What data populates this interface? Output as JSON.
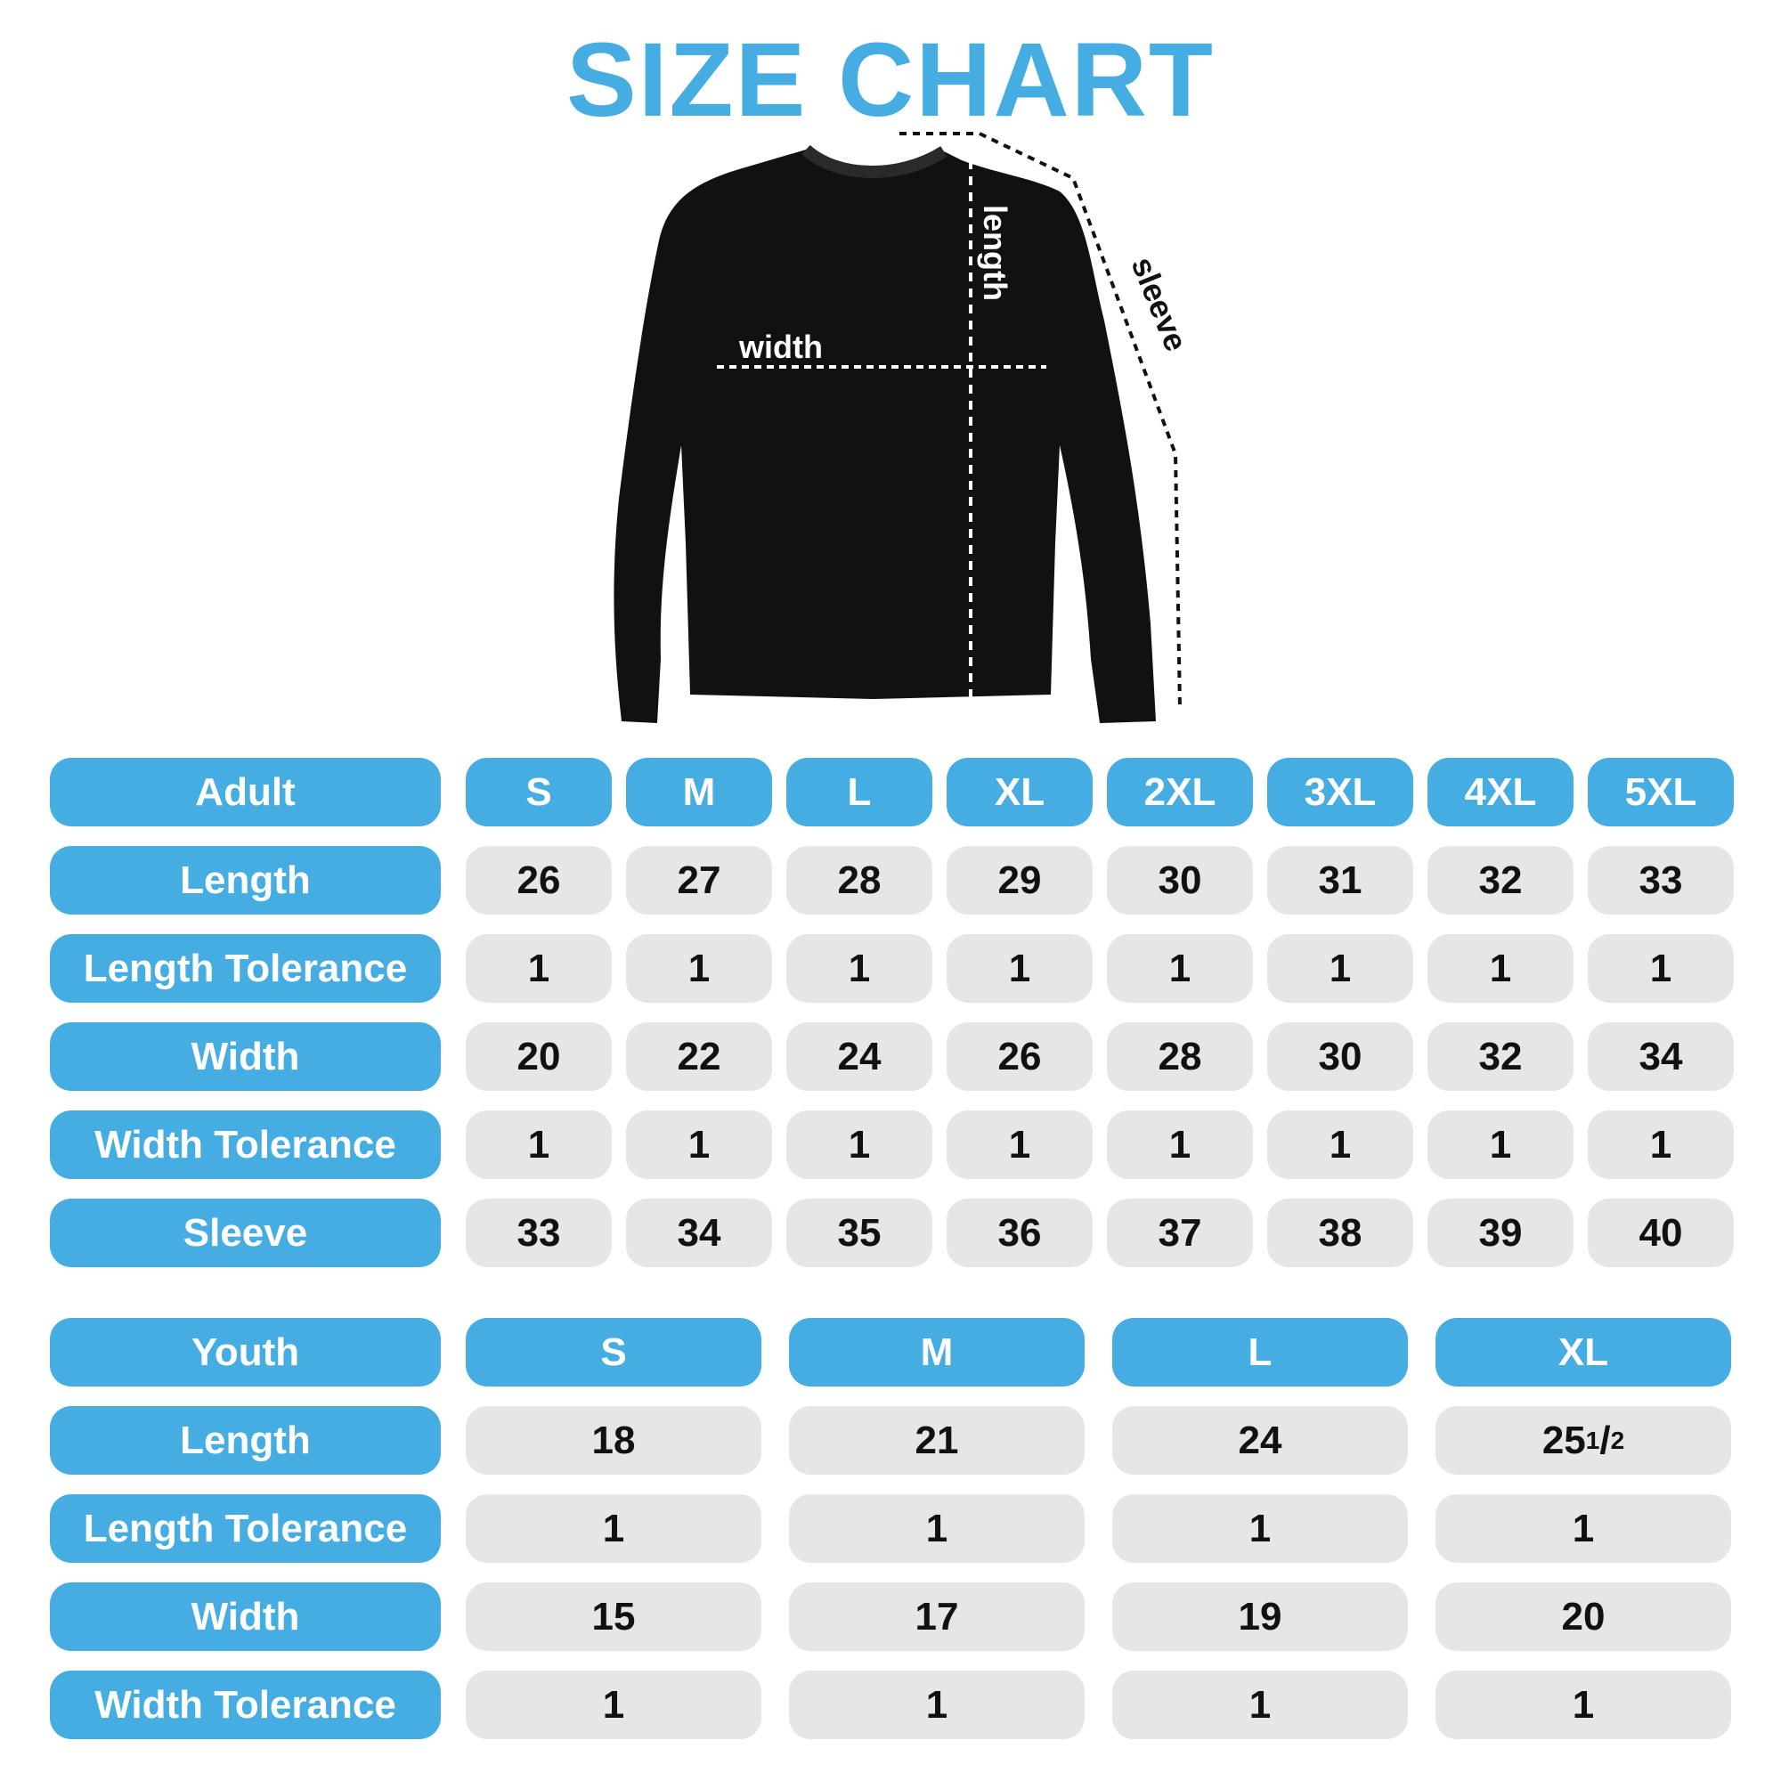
{
  "title": "SIZE CHART",
  "colors": {
    "accent": "#45ADE1",
    "cell_bg": "#E6E6E8",
    "text": "#111111"
  },
  "garment": {
    "image": "black crewneck sweatshirt",
    "labels": {
      "length": "length",
      "width": "width",
      "sleeve": "sleeve"
    }
  },
  "adult": {
    "header": "Adult",
    "sizes": [
      "S",
      "M",
      "L",
      "XL",
      "2XL",
      "3XL",
      "4XL",
      "5XL"
    ],
    "rows": [
      {
        "label": "Length",
        "values": [
          "26",
          "27",
          "28",
          "29",
          "30",
          "31",
          "32",
          "33"
        ]
      },
      {
        "label": "Length Tolerance",
        "values": [
          "1",
          "1",
          "1",
          "1",
          "1",
          "1",
          "1",
          "1"
        ]
      },
      {
        "label": "Width",
        "values": [
          "20",
          "22",
          "24",
          "26",
          "28",
          "30",
          "32",
          "34"
        ]
      },
      {
        "label": "Width Tolerance",
        "values": [
          "1",
          "1",
          "1",
          "1",
          "1",
          "1",
          "1",
          "1"
        ]
      },
      {
        "label": "Sleeve",
        "values": [
          "33",
          "34",
          "35",
          "36",
          "37",
          "38",
          "39",
          "40"
        ]
      }
    ]
  },
  "youth": {
    "header": "Youth",
    "sizes": [
      "S",
      "M",
      "L",
      "XL"
    ],
    "rows": [
      {
        "label": "Length",
        "values": [
          "18",
          "21",
          "24",
          "25 1/2"
        ]
      },
      {
        "label": "Length Tolerance",
        "values": [
          "1",
          "1",
          "1",
          "1"
        ]
      },
      {
        "label": "Width",
        "values": [
          "15",
          "17",
          "19",
          "20"
        ]
      },
      {
        "label": "Width Tolerance",
        "values": [
          "1",
          "1",
          "1",
          "1"
        ]
      }
    ]
  }
}
